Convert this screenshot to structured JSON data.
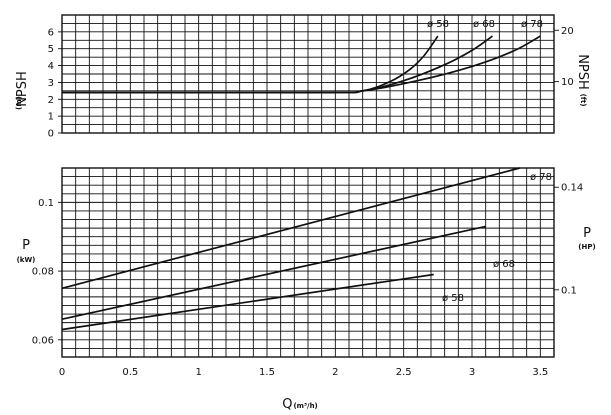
{
  "chart_data": [
    {
      "type": "line",
      "id": "npsh",
      "ylabel": "NPSH",
      "yunit": "(m)",
      "y2label": "NPSH",
      "y2unit": "(ft)",
      "xlim": [
        0,
        3.6
      ],
      "ylim": [
        0,
        7
      ],
      "ylim2": [
        0,
        22.97
      ],
      "yticks": [
        0,
        1,
        2,
        3,
        4,
        5,
        6
      ],
      "y2ticks": [
        10,
        20
      ],
      "grid": true,
      "series": [
        {
          "name": "ø 58",
          "x": [
            0,
            1.9,
            2.2,
            2.4,
            2.55,
            2.65,
            2.75
          ],
          "y": [
            2.4,
            2.4,
            2.5,
            3.05,
            3.8,
            4.6,
            5.75
          ]
        },
        {
          "name": "ø 68",
          "x": [
            0,
            1.9,
            2.2,
            2.5,
            2.8,
            3.0,
            3.15
          ],
          "y": [
            2.4,
            2.4,
            2.5,
            3.1,
            4.05,
            4.9,
            5.75
          ]
        },
        {
          "name": "ø 78",
          "x": [
            0,
            1.9,
            2.2,
            2.6,
            3.0,
            3.3,
            3.5
          ],
          "y": [
            2.4,
            2.4,
            2.5,
            3.1,
            3.95,
            4.85,
            5.75
          ]
        }
      ]
    },
    {
      "type": "line",
      "id": "power",
      "xlabel": "Q",
      "xunit": "(m³/h)",
      "ylabel": "P",
      "yunit": "(kW)",
      "y2label": "P",
      "y2unit": "(HP)",
      "xlim": [
        0,
        3.6
      ],
      "ylim": [
        0.055,
        0.11
      ],
      "ylim2": [
        0.0738,
        0.1475
      ],
      "xticks": [
        0,
        0.5,
        1,
        1.5,
        2,
        2.5,
        3,
        3.5
      ],
      "xtick_labels": [
        "0",
        "0.5",
        "1",
        "1.5",
        "2",
        "2.5",
        "3",
        "3.5"
      ],
      "yticks": [
        0.06,
        0.08,
        0.1
      ],
      "y2ticks": [
        0.1,
        0.14
      ],
      "grid": true,
      "series": [
        {
          "name": "ø 78",
          "x": [
            0,
            3.35
          ],
          "y": [
            0.075,
            0.11
          ]
        },
        {
          "name": "ø 68",
          "x": [
            0,
            3.1
          ],
          "y": [
            0.066,
            0.093
          ]
        },
        {
          "name": "ø 58",
          "x": [
            0,
            2.72
          ],
          "y": [
            0.063,
            0.079
          ]
        }
      ]
    }
  ]
}
